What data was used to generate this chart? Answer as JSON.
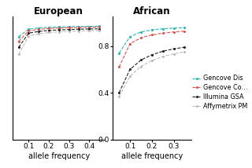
{
  "title_left": "European",
  "title_right": "African",
  "xlabel": "allele frequency",
  "x_european": [
    0.05,
    0.1,
    0.15,
    0.2,
    0.25,
    0.3,
    0.35,
    0.4,
    0.45
  ],
  "x_african": [
    0.05,
    0.1,
    0.15,
    0.2,
    0.25,
    0.3,
    0.35
  ],
  "european": {
    "gencove_dis": [
      0.88,
      0.945,
      0.955,
      0.96,
      0.963,
      0.965,
      0.967,
      0.968,
      0.969
    ],
    "gencove_cov": [
      0.84,
      0.93,
      0.943,
      0.95,
      0.954,
      0.957,
      0.959,
      0.961,
      0.962
    ],
    "illumina_gsa": [
      0.79,
      0.91,
      0.925,
      0.933,
      0.938,
      0.941,
      0.944,
      0.946,
      0.947
    ],
    "affymetrix": [
      0.73,
      0.885,
      0.905,
      0.915,
      0.921,
      0.925,
      0.928,
      0.931,
      0.932
    ]
  },
  "african": {
    "gencove_dis": [
      0.74,
      0.88,
      0.92,
      0.938,
      0.947,
      0.953,
      0.957
    ],
    "gencove_cov": [
      0.62,
      0.82,
      0.87,
      0.895,
      0.91,
      0.92,
      0.927
    ],
    "illumina_gsa": [
      0.4,
      0.6,
      0.68,
      0.725,
      0.755,
      0.775,
      0.79
    ],
    "affymetrix": [
      0.37,
      0.54,
      0.625,
      0.675,
      0.71,
      0.733,
      0.75
    ]
  },
  "colors": {
    "gencove_dis": "#2ab5b5",
    "gencove_cov": "#d9534f",
    "illumina_gsa": "#222222",
    "affymetrix": "#bbbbbb"
  },
  "legend_labels": [
    "Gencove Dis",
    "Gencove Co…",
    "Illumina GSA",
    "Affymetrix PM"
  ],
  "ylim": [
    0.0,
    1.05
  ],
  "yticks": [
    0.0,
    0.4,
    0.8
  ],
  "xticks_european": [
    0.1,
    0.2,
    0.3,
    0.4
  ],
  "xticks_african": [
    0.1,
    0.2,
    0.3
  ],
  "title_fontsize": 8.5,
  "label_fontsize": 7,
  "tick_fontsize": 6.5,
  "legend_fontsize": 5.8
}
